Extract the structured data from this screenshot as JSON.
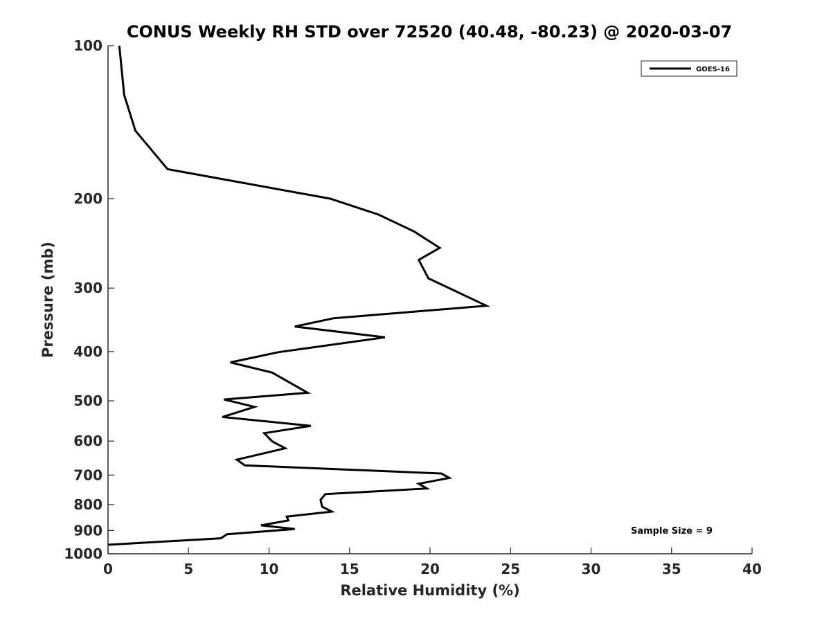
{
  "chart_data": {
    "type": "line",
    "title": "CONUS Weekly RH STD over 72520 (40.48, -80.23) @ 2020-03-07",
    "xlabel": "Relative Humidity (%)",
    "ylabel": "Pressure (mb)",
    "xlim": [
      0,
      40
    ],
    "ylim": [
      100,
      1000
    ],
    "yscale": "log",
    "grid": false,
    "x_ticks": [
      0,
      5,
      10,
      15,
      20,
      25,
      30,
      35,
      40
    ],
    "y_ticks": [
      100,
      200,
      300,
      400,
      500,
      600,
      700,
      800,
      900,
      1000
    ],
    "legend": {
      "position": "top-right",
      "entries": [
        "GOES-16"
      ]
    },
    "annotation": "Sample Size = 9",
    "series": [
      {
        "name": "GOES-16",
        "color": "#000000",
        "points": [
          [
            0.7,
            100
          ],
          [
            1.0,
            125
          ],
          [
            1.7,
            147
          ],
          [
            3.7,
            175
          ],
          [
            7.9,
            185
          ],
          [
            13.8,
            200
          ],
          [
            16.8,
            215
          ],
          [
            19.0,
            232
          ],
          [
            20.6,
            250
          ],
          [
            19.3,
            264
          ],
          [
            19.9,
            287
          ],
          [
            23.5,
            325
          ],
          [
            14.0,
            344
          ],
          [
            11.6,
            357
          ],
          [
            17.2,
            375
          ],
          [
            10.6,
            401
          ],
          [
            7.6,
            420
          ],
          [
            10.2,
            440
          ],
          [
            12.4,
            482
          ],
          [
            7.2,
            497
          ],
          [
            9.1,
            514
          ],
          [
            7.1,
            538
          ],
          [
            12.6,
            560
          ],
          [
            9.7,
            579
          ],
          [
            10.2,
            601
          ],
          [
            11.0,
            620
          ],
          [
            8.0,
            653
          ],
          [
            8.5,
            670
          ],
          [
            20.7,
            695
          ],
          [
            21.2,
            709
          ],
          [
            19.3,
            728
          ],
          [
            19.8,
            744
          ],
          [
            13.5,
            763
          ],
          [
            13.2,
            783
          ],
          [
            13.3,
            808
          ],
          [
            13.9,
            826
          ],
          [
            11.1,
            845
          ],
          [
            11.2,
            860
          ],
          [
            9.5,
            879
          ],
          [
            11.6,
            894
          ],
          [
            7.4,
            915
          ],
          [
            7.0,
            932
          ],
          [
            0,
            960
          ]
        ]
      }
    ]
  }
}
